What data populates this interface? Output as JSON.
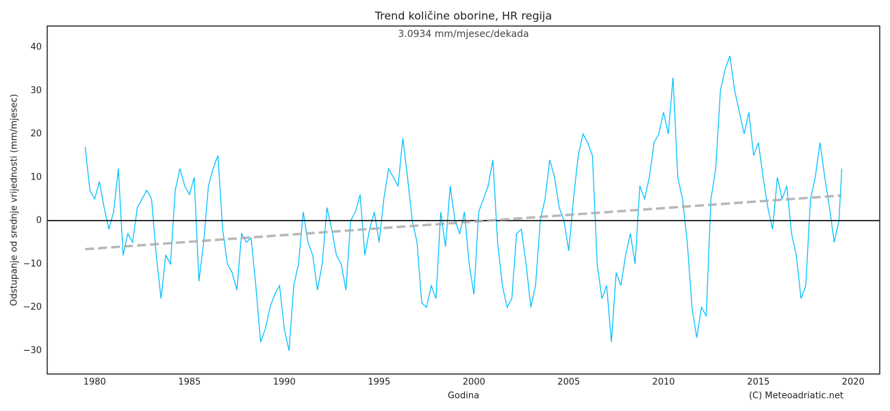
{
  "chart_data": {
    "type": "line",
    "title": "Trend količine oborine, HR regija",
    "subtitle": "3.0934 mm/mjesec/dekada",
    "x_label": "Godina",
    "y_label": "Odstupanje od srednje vrijednosti (mm/mjesec)",
    "credit": "(C) Meteoadriatic.net",
    "xlim": [
      1977.5,
      2021.4
    ],
    "ylim": [
      -35.4,
      44.9
    ],
    "xticks": [
      1980,
      1985,
      1990,
      1995,
      2000,
      2005,
      2010,
      2015,
      2020
    ],
    "yticks": [
      {
        "value": -30,
        "label": "−30"
      },
      {
        "value": -20,
        "label": "−20"
      },
      {
        "value": -10,
        "label": "−10"
      },
      0,
      10,
      20,
      30,
      40
    ],
    "hline": 0,
    "series": [
      {
        "color": "#00bfff",
        "dashed": false,
        "x": [
          1979.5,
          1979.75,
          1980,
          1980.25,
          1980.5,
          1980.75,
          1981,
          1981.25,
          1981.5,
          1981.75,
          1982,
          1982.25,
          1982.5,
          1982.75,
          1983,
          1983.25,
          1983.5,
          1983.75,
          1984,
          1984.25,
          1984.5,
          1984.75,
          1985,
          1985.25,
          1985.5,
          1985.75,
          1986,
          1986.25,
          1986.5,
          1986.75,
          1987,
          1987.25,
          1987.5,
          1987.75,
          1988,
          1988.25,
          1988.5,
          1988.75,
          1989,
          1989.25,
          1989.5,
          1989.75,
          1990,
          1990.25,
          1990.5,
          1990.75,
          1991,
          1991.25,
          1991.5,
          1991.75,
          1992,
          1992.25,
          1992.5,
          1992.75,
          1993,
          1993.25,
          1993.5,
          1993.75,
          1994,
          1994.25,
          1994.5,
          1994.75,
          1995,
          1995.25,
          1995.5,
          1995.75,
          1996,
          1996.25,
          1996.5,
          1996.75,
          1997,
          1997.25,
          1997.5,
          1997.75,
          1998,
          1998.25,
          1998.5,
          1998.75,
          1999,
          1999.25,
          1999.5,
          1999.75,
          2000,
          2000.25,
          2000.5,
          2000.75,
          2001,
          2001.25,
          2001.5,
          2001.75,
          2002,
          2002.25,
          2002.5,
          2002.75,
          2003,
          2003.25,
          2003.5,
          2003.75,
          2004,
          2004.25,
          2004.5,
          2004.75,
          2005,
          2005.25,
          2005.5,
          2005.75,
          2006,
          2006.25,
          2006.5,
          2006.75,
          2007,
          2007.25,
          2007.5,
          2007.75,
          2008,
          2008.25,
          2008.5,
          2008.75,
          2009,
          2009.25,
          2009.5,
          2009.75,
          2010,
          2010.25,
          2010.5,
          2010.75,
          2011,
          2011.25,
          2011.5,
          2011.75,
          2012,
          2012.25,
          2012.5,
          2012.75,
          2013,
          2013.25,
          2013.5,
          2013.75,
          2014,
          2014.25,
          2014.5,
          2014.75,
          2015,
          2015.25,
          2015.5,
          2015.75,
          2016,
          2016.25,
          2016.5,
          2016.75,
          2017,
          2017.25,
          2017.5,
          2017.75,
          2018,
          2018.25,
          2018.5,
          2018.75,
          2019,
          2019.25,
          2019.4
        ],
        "values": [
          17,
          7,
          5,
          9,
          3,
          -2,
          2,
          12,
          -8,
          -3,
          -5,
          3,
          5,
          7,
          5,
          -8,
          -18,
          -8,
          -10,
          7,
          12,
          8,
          6,
          10,
          -14,
          -5,
          8,
          12,
          15,
          -2,
          -10,
          -12,
          -16,
          -3,
          -5,
          -4,
          -15,
          -28,
          -25,
          -20,
          -17,
          -15,
          -25,
          -30,
          -15,
          -10,
          2,
          -5,
          -8,
          -16,
          -10,
          3,
          -2,
          -8,
          -10,
          -16,
          0,
          2,
          6,
          -8,
          -2,
          2,
          -5,
          5,
          12,
          10,
          8,
          19,
          10,
          0,
          -5,
          -19,
          -20,
          -15,
          -18,
          2,
          -6,
          8,
          0,
          -3,
          2,
          -10,
          -17,
          2,
          5,
          8,
          14,
          -5,
          -15,
          -20,
          -18,
          -3,
          -2,
          -10,
          -20,
          -15,
          0,
          5,
          14,
          10,
          3,
          0,
          -7,
          5,
          15,
          20,
          18,
          15,
          -10,
          -18,
          -15,
          -28,
          -12,
          -15,
          -8,
          -3,
          -10,
          8,
          5,
          10,
          18,
          20,
          25,
          20,
          33,
          10,
          5,
          -5,
          -20,
          -27,
          -20,
          -22,
          5,
          12,
          30,
          35,
          38,
          30,
          25,
          20,
          25,
          15,
          18,
          10,
          3,
          -2,
          10,
          5,
          8,
          -3,
          -8,
          -18,
          -15,
          5,
          10,
          18,
          10,
          3,
          -5,
          0,
          12
        ]
      },
      {
        "color": "#aaaaaa",
        "dashed": true,
        "x": [
          1979.5,
          2019.4
        ],
        "values": [
          -6.6,
          5.8
        ]
      }
    ]
  }
}
